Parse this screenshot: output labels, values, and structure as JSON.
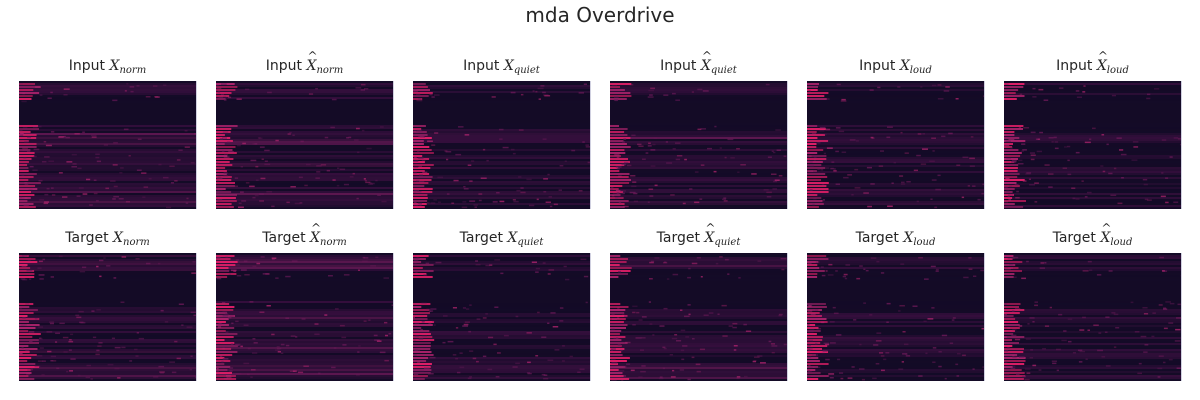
{
  "chart_data": {
    "type": "heatmap",
    "title": "mda Overdrive",
    "grid": false,
    "colormap": [
      "#140b27",
      "#3a1040",
      "#6e1a5a",
      "#b0246e",
      "#e8206a"
    ],
    "rows": [
      {
        "prefix": "Input",
        "panels": [
          {
            "symbol": "X",
            "hat": false,
            "subscript": "norm"
          },
          {
            "symbol": "X",
            "hat": true,
            "subscript": "norm"
          },
          {
            "symbol": "X",
            "hat": false,
            "subscript": "quiet"
          },
          {
            "symbol": "X",
            "hat": true,
            "subscript": "quiet"
          },
          {
            "symbol": "X",
            "hat": false,
            "subscript": "loud"
          },
          {
            "symbol": "X",
            "hat": true,
            "subscript": "loud"
          }
        ]
      },
      {
        "prefix": "Target",
        "panels": [
          {
            "symbol": "X",
            "hat": false,
            "subscript": "norm"
          },
          {
            "symbol": "X",
            "hat": true,
            "subscript": "norm"
          },
          {
            "symbol": "X",
            "hat": false,
            "subscript": "quiet"
          },
          {
            "symbol": "X",
            "hat": true,
            "subscript": "quiet"
          },
          {
            "symbol": "X",
            "hat": false,
            "subscript": "loud"
          },
          {
            "symbol": "X",
            "hat": true,
            "subscript": "loud"
          }
        ]
      }
    ]
  }
}
